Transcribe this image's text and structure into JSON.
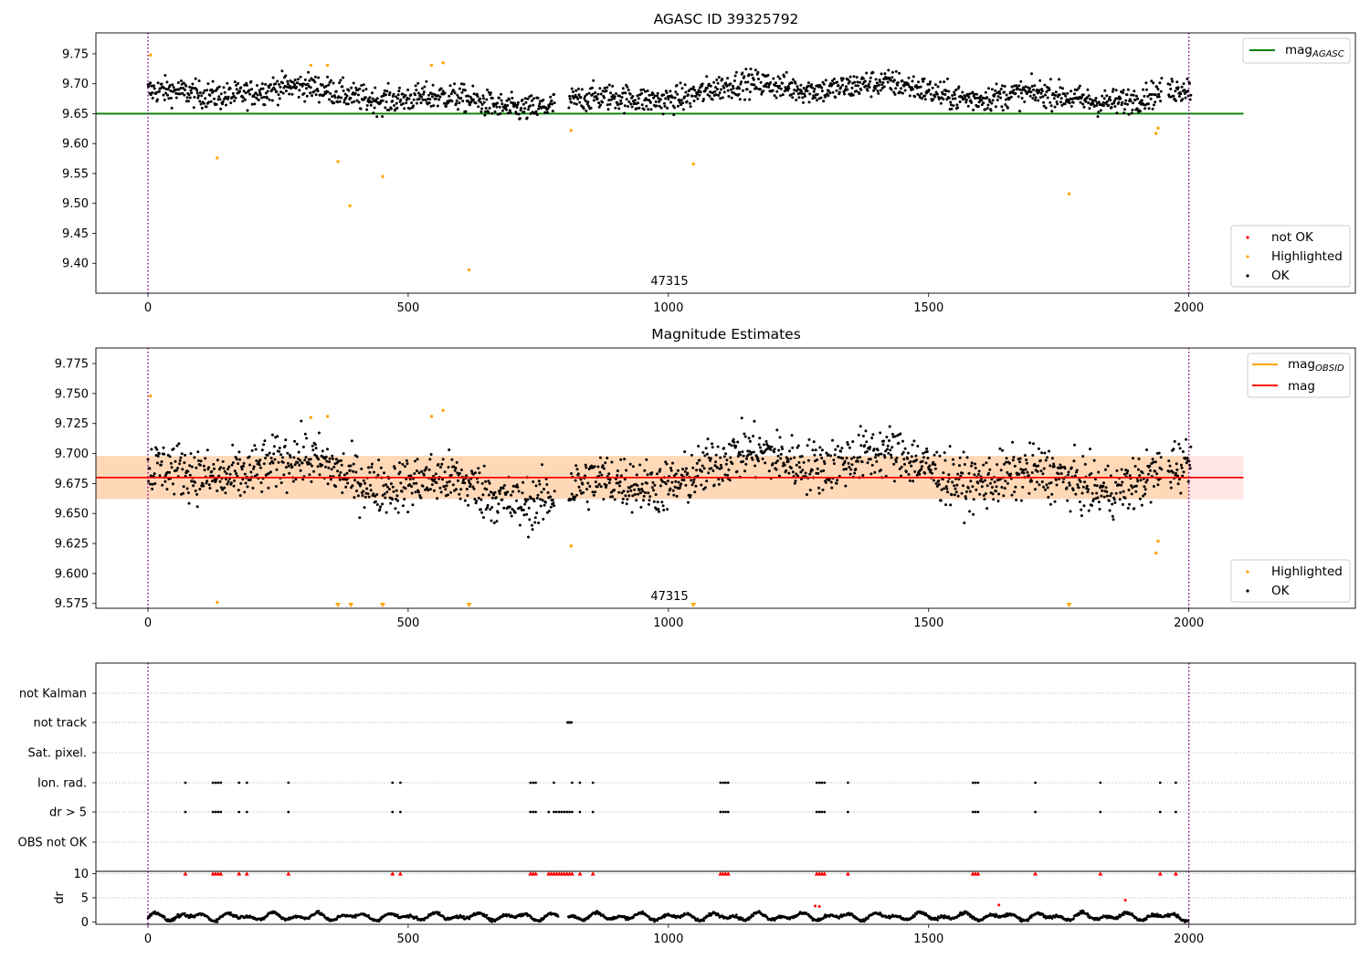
{
  "chart_data": [
    {
      "type": "scatter",
      "title": "AGASC ID 39325792",
      "xlim": [
        -100,
        2320
      ],
      "ylim": [
        9.35,
        9.785
      ],
      "xticks": [
        "0",
        "500",
        "1000",
        "1500",
        "2000"
      ],
      "yticks": [
        "9.40",
        "9.45",
        "9.50",
        "9.55",
        "9.60",
        "9.65",
        "9.70",
        "9.75"
      ],
      "vlines": [
        0,
        2000
      ],
      "annotation": "47315",
      "reference_line": {
        "name": "mag",
        "subscript": "AGASC",
        "value": 9.65,
        "xrange": [
          -100,
          2105
        ],
        "color": "#008000"
      },
      "series": [
        {
          "name": "not OK",
          "color": "#ff0000"
        },
        {
          "name": "Highlighted",
          "color": "#ffa500",
          "points": [
            [
              5,
              9.748
            ],
            [
              133,
              9.576
            ],
            [
              313,
              9.731
            ],
            [
              345,
              9.731
            ],
            [
              365,
              9.57
            ],
            [
              388,
              9.496
            ],
            [
              451,
              9.545
            ],
            [
              545,
              9.731
            ],
            [
              567,
              9.735
            ],
            [
              617,
              9.389
            ],
            [
              813,
              9.622
            ],
            [
              1048,
              9.566
            ],
            [
              1770,
              9.516
            ],
            [
              1937,
              9.617
            ],
            [
              1941,
              9.626
            ]
          ]
        },
        {
          "name": "OK",
          "color": "#000000",
          "generated": true,
          "n": 1750
        }
      ],
      "legend": {
        "line": "top-right",
        "points": "bottom-right"
      }
    },
    {
      "type": "scatter",
      "title": "Magnitude Estimates",
      "xlim": [
        -100,
        2320
      ],
      "ylim": [
        9.571,
        9.788
      ],
      "xticks": [
        "0",
        "500",
        "1000",
        "1500",
        "2000"
      ],
      "yticks": [
        "9.575",
        "9.600",
        "9.625",
        "9.650",
        "9.675",
        "9.700",
        "9.725",
        "9.750",
        "9.775"
      ],
      "vlines": [
        0,
        2000
      ],
      "annotation": "47315",
      "mean_line": {
        "name": "mag",
        "value": 9.68,
        "band": [
          9.662,
          9.698
        ],
        "xrange": [
          -100,
          2105
        ],
        "color": "#ff0000"
      },
      "obsid_line": {
        "name": "mag",
        "subscript": "OBSID",
        "value": 9.68,
        "band": [
          9.662,
          9.698
        ],
        "xrange": [
          -100,
          2000
        ],
        "color": "#ffa500"
      },
      "below_range_markers": [
        365,
        390,
        451,
        617,
        1048,
        1770
      ],
      "series": [
        {
          "name": "Highlighted",
          "color": "#ffa500",
          "points": [
            [
              5,
              9.748
            ],
            [
              133,
              9.576
            ],
            [
              313,
              9.73
            ],
            [
              345,
              9.731
            ],
            [
              545,
              9.731
            ],
            [
              567,
              9.736
            ],
            [
              813,
              9.623
            ],
            [
              1937,
              9.617
            ],
            [
              1941,
              9.627
            ]
          ]
        },
        {
          "name": "OK",
          "color": "#000000",
          "generated": true,
          "n": 1750
        }
      ],
      "legend": {
        "line": "top-right",
        "points": "bottom-right"
      }
    },
    {
      "type": "scatter",
      "title": "",
      "xlim": [
        -100,
        2320
      ],
      "categories": [
        "not Kalman",
        "not track",
        "Sat. pixel.",
        "Ion. rad.",
        "dr > 5",
        "OBS not OK"
      ],
      "flags": {
        "not track": [
          806,
          808,
          810,
          812,
          814
        ],
        "Ion. rad.": [
          72,
          125,
          130,
          135,
          140,
          175,
          190,
          270,
          470,
          485,
          735,
          740,
          745,
          780,
          815,
          830,
          855,
          1100,
          1105,
          1110,
          1115,
          1285,
          1290,
          1295,
          1300,
          1345,
          1585,
          1590,
          1595,
          1705,
          1830,
          1945,
          1975
        ],
        "dr > 5": [
          72,
          125,
          130,
          135,
          140,
          175,
          190,
          270,
          470,
          485,
          735,
          740,
          745,
          770,
          780,
          785,
          790,
          795,
          800,
          805,
          810,
          815,
          830,
          855,
          1100,
          1105,
          1110,
          1115,
          1285,
          1290,
          1295,
          1300,
          1345,
          1585,
          1590,
          1595,
          1705,
          1830,
          1945,
          1975
        ]
      }
    },
    {
      "type": "scatter",
      "title": "",
      "ylabel": "dr",
      "xlim": [
        -100,
        2320
      ],
      "ylim": [
        -0.5,
        10.5
      ],
      "xticks": [
        "0",
        "500",
        "1000",
        "1500",
        "2000"
      ],
      "yticks": [
        "0",
        "5",
        "10"
      ],
      "vlines": [
        0,
        2000
      ],
      "capped_markers": [
        72,
        125,
        130,
        135,
        140,
        175,
        190,
        270,
        470,
        485,
        735,
        740,
        745,
        770,
        775,
        780,
        785,
        790,
        795,
        800,
        805,
        810,
        815,
        830,
        855,
        1100,
        1105,
        1110,
        1115,
        1285,
        1290,
        1295,
        1300,
        1345,
        1585,
        1590,
        1595,
        1705,
        1830,
        1945,
        1975
      ],
      "highlight_points": [
        [
          1282,
          3.3
        ],
        [
          1290,
          3.2
        ],
        [
          1635,
          3.5
        ],
        [
          1878,
          4.5
        ]
      ],
      "series": [
        {
          "name": "dr",
          "color": "#000000",
          "generated": true,
          "n": 1500
        }
      ]
    }
  ]
}
